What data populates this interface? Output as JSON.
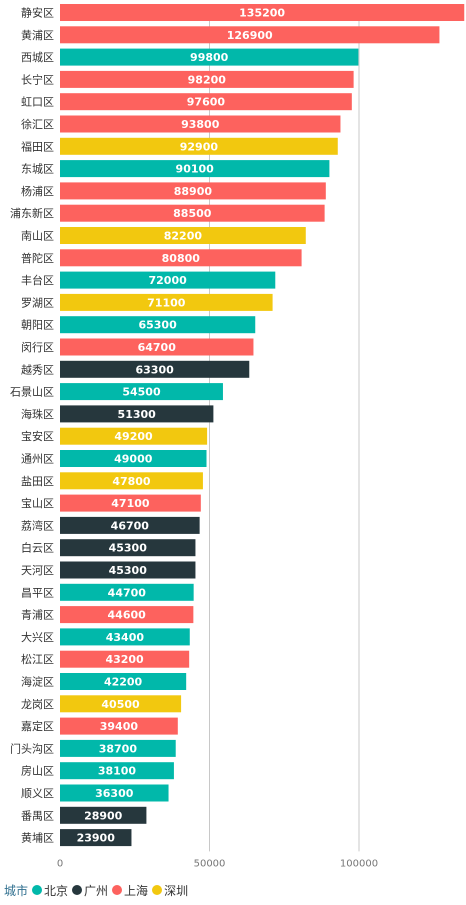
{
  "chart_data": {
    "type": "bar",
    "orientation": "horizontal",
    "categories": [
      "静安区",
      "黄浦区",
      "西城区",
      "长宁区",
      "虹口区",
      "徐汇区",
      "福田区",
      "东城区",
      "杨浦区",
      "浦东新区",
      "南山区",
      "普陀区",
      "丰台区",
      "罗湖区",
      "朝阳区",
      "闵行区",
      "越秀区",
      "石景山区",
      "海珠区",
      "宝安区",
      "通州区",
      "盐田区",
      "宝山区",
      "荔湾区",
      "白云区",
      "天河区",
      "昌平区",
      "青浦区",
      "大兴区",
      "松江区",
      "海淀区",
      "龙岗区",
      "嘉定区",
      "门头沟区",
      "房山区",
      "顺义区",
      "番禺区",
      "黄埔区"
    ],
    "values": [
      135200,
      126900,
      99800,
      98200,
      97600,
      93800,
      92900,
      90100,
      88900,
      88500,
      82200,
      80800,
      72000,
      71100,
      65300,
      64700,
      63300,
      54500,
      51300,
      49200,
      49000,
      47800,
      47100,
      46700,
      45300,
      45300,
      44700,
      44600,
      43400,
      43200,
      42200,
      40500,
      39400,
      38700,
      38100,
      36300,
      28900,
      23900
    ],
    "groups": [
      "上海",
      "上海",
      "北京",
      "上海",
      "上海",
      "上海",
      "深圳",
      "北京",
      "上海",
      "上海",
      "深圳",
      "上海",
      "北京",
      "深圳",
      "北京",
      "上海",
      "广州",
      "北京",
      "广州",
      "深圳",
      "北京",
      "深圳",
      "上海",
      "广州",
      "广州",
      "广州",
      "北京",
      "上海",
      "北京",
      "上海",
      "北京",
      "深圳",
      "上海",
      "北京",
      "北京",
      "北京",
      "广州",
      "广州"
    ],
    "xlim": [
      0,
      140000
    ],
    "xticks": [
      0,
      50000,
      100000
    ],
    "grid": true,
    "legend_position": "bottom-left",
    "legend_title": "城市",
    "legend": [
      {
        "name": "北京",
        "color": "#01b8aa"
      },
      {
        "name": "广州",
        "color": "#26373d"
      },
      {
        "name": "上海",
        "color": "#fd625e"
      },
      {
        "name": "深圳",
        "color": "#f2c80f"
      }
    ]
  }
}
